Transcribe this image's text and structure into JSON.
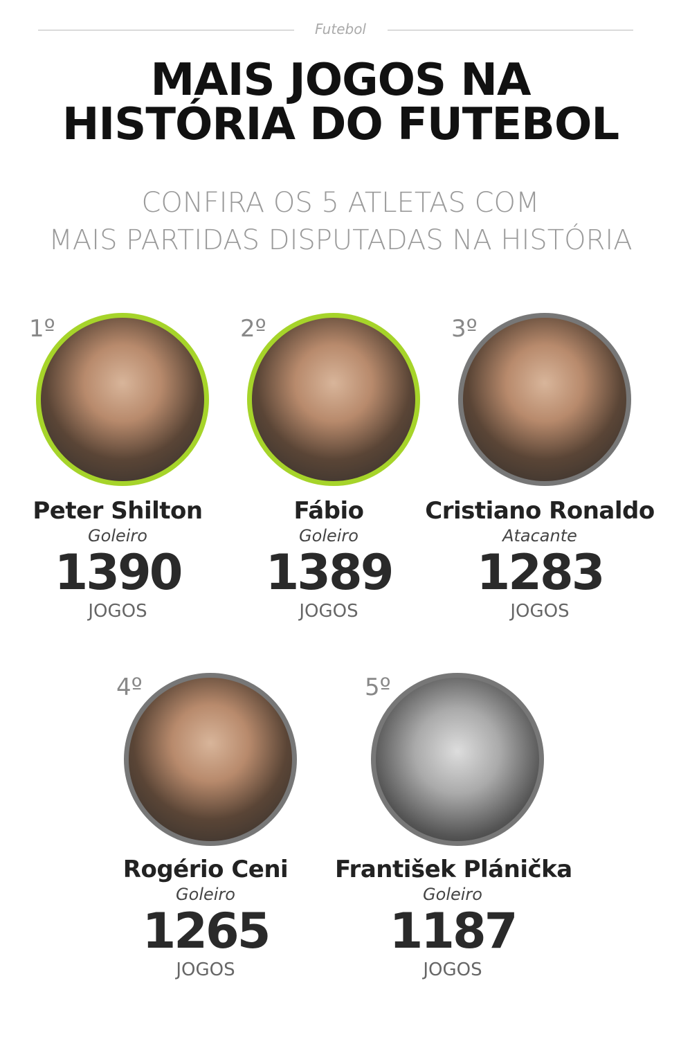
{
  "section": "Futebol",
  "title_line1": "MAIS JOGOS NA",
  "title_line2": "HISTÓRIA DO FUTEBOL",
  "subtitle_line1": "CONFIRA OS 5 ATLETAS COM",
  "subtitle_line2": "MAIS PARTIDAS DISPUTADAS NA HISTÓRIA",
  "accent_color": "#a6d42a",
  "players": [
    {
      "rank": "1º",
      "name": "Peter Shilton",
      "role": "Goleiro",
      "games": "1390",
      "unit": "JOGOS"
    },
    {
      "rank": "2º",
      "name": "Fábio",
      "role": "Goleiro",
      "games": "1389",
      "unit": "JOGOS"
    },
    {
      "rank": "3º",
      "name": "Cristiano Ronaldo",
      "role": "Atacante",
      "games": "1283",
      "unit": "JOGOS"
    },
    {
      "rank": "4º",
      "name": "Rogério Ceni",
      "role": "Goleiro",
      "games": "1265",
      "unit": "JOGOS"
    },
    {
      "rank": "5º",
      "name": "František Plánička",
      "role": "Goleiro",
      "games": "1187",
      "unit": "JOGOS"
    }
  ]
}
